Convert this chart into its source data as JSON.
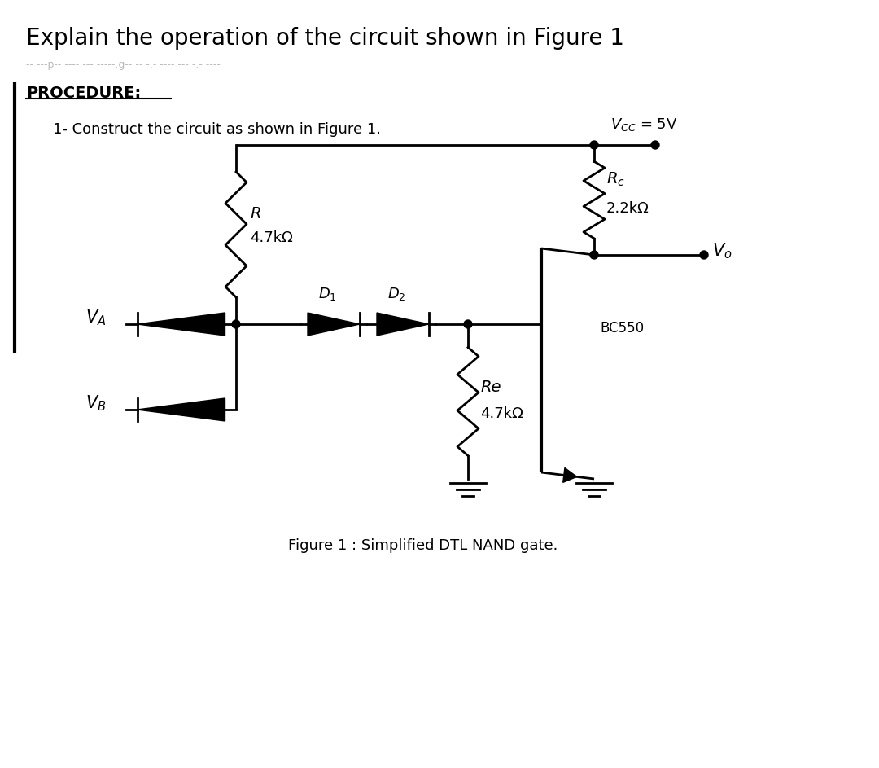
{
  "title": "Explain the operation of the circuit shown in Figure 1",
  "subtitle": "-- ---p-- ---- --- -----.g-- -- -.- ---- --- -.- ----",
  "procedure_label": "PROCEDURE:",
  "step1_label": "1- Construct the circuit as shown in Figure 1.",
  "Rc_label": "Rc",
  "Rc_val": "2.2kΩ",
  "R_label": "R",
  "R_val": "4.7kΩ",
  "Re_label": "Re",
  "Re_val": "4.7kΩ",
  "D1_label": "D₁",
  "D2_label": "D₂",
  "transistor_label": "BC550",
  "figure_caption": "Figure 1 : Simplified DTL NAND gate.",
  "bg_color": "#ffffff",
  "line_color": "#000000",
  "text_color": "#000000",
  "lw": 2.0
}
